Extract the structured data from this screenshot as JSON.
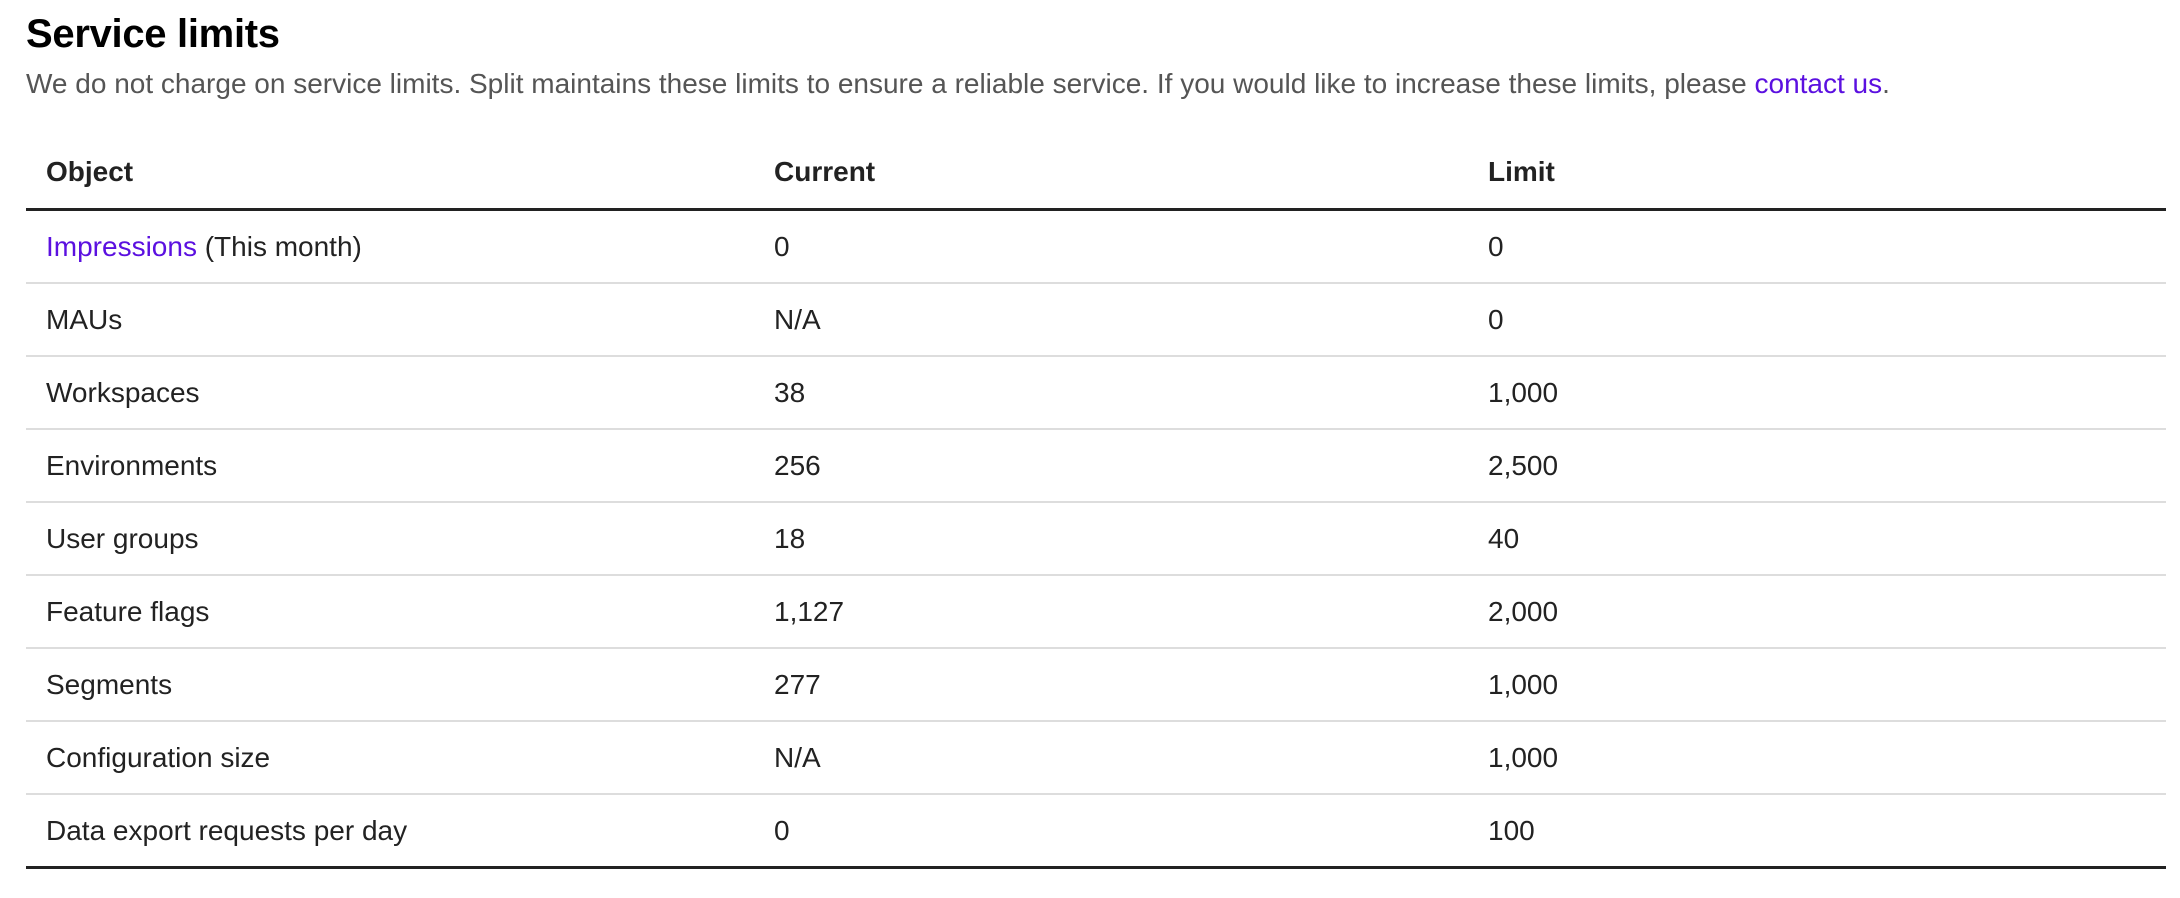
{
  "title": "Service limits",
  "description": {
    "text": "We do not charge on service limits. Split maintains these limits to ensure a reliable service. If you would like to increase these limits, please ",
    "link": "contact us",
    "suffix": "."
  },
  "colors": {
    "link": "#5b10e0",
    "text": "#222222",
    "muted": "#555555"
  },
  "table": {
    "headers": [
      "Object",
      "Current",
      "Limit"
    ],
    "rows": [
      {
        "object_link": "Impressions",
        "object": " (This month)",
        "current": "0",
        "limit": "0"
      },
      {
        "object": "MAUs",
        "current": "N/A",
        "limit": "0"
      },
      {
        "object": "Workspaces",
        "current": "38",
        "limit": "1,000"
      },
      {
        "object": "Environments",
        "current": "256",
        "limit": "2,500"
      },
      {
        "object": "User groups",
        "current": "18",
        "limit": "40"
      },
      {
        "object": "Feature flags",
        "current": "1,127",
        "limit": "2,000"
      },
      {
        "object": "Segments",
        "current": "277",
        "limit": "1,000"
      },
      {
        "object": "Configuration size",
        "current": "N/A",
        "limit": "1,000"
      },
      {
        "object": "Data export requests per day",
        "current": "0",
        "limit": "100"
      }
    ]
  }
}
